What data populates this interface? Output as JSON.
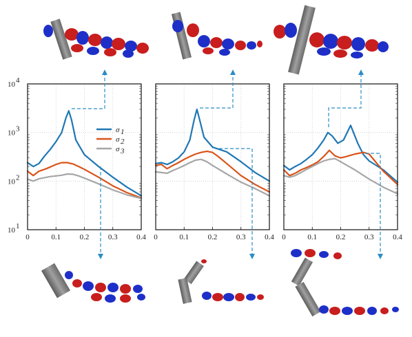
{
  "chart_data": {
    "type": "line",
    "panels": [
      {
        "xlim": [
          0,
          0.4
        ],
        "ylim_log10": [
          1,
          4
        ],
        "log_y": true,
        "grid": true,
        "series": [
          {
            "name": "σ1",
            "color": "#1f77b4",
            "x": [
              0,
              0.02,
              0.04,
              0.06,
              0.08,
              0.1,
              0.12,
              0.135,
              0.145,
              0.155,
              0.17,
              0.2,
              0.25,
              0.3,
              0.35,
              0.4
            ],
            "y": [
              240,
              200,
              230,
              330,
              450,
              650,
              1000,
              2000,
              2800,
              1800,
              700,
              350,
              200,
              120,
              75,
              50
            ]
          },
          {
            "name": "σ2",
            "color": "#d95319",
            "x": [
              0,
              0.02,
              0.04,
              0.06,
              0.08,
              0.1,
              0.12,
              0.14,
              0.16,
              0.18,
              0.2,
              0.25,
              0.3,
              0.35,
              0.4
            ],
            "y": [
              160,
              130,
              160,
              175,
              195,
              220,
              240,
              240,
              225,
              200,
              175,
              120,
              80,
              58,
              45
            ]
          },
          {
            "name": "σ3",
            "color": "#a6a6a6",
            "x": [
              0,
              0.02,
              0.04,
              0.06,
              0.08,
              0.1,
              0.12,
              0.14,
              0.16,
              0.18,
              0.2,
              0.25,
              0.3,
              0.35,
              0.4
            ],
            "y": [
              110,
              100,
              112,
              118,
              124,
              128,
              132,
              140,
              138,
              128,
              115,
              88,
              66,
              52,
              44
            ]
          }
        ],
        "legend": "top-right"
      },
      {
        "xlim": [
          0,
          0.4
        ],
        "ylim_log10": [
          1,
          4
        ],
        "log_y": true,
        "grid": true,
        "series": [
          {
            "name": "σ1",
            "color": "#1f77b4",
            "x": [
              0,
              0.02,
              0.04,
              0.06,
              0.08,
              0.1,
              0.12,
              0.135,
              0.145,
              0.155,
              0.17,
              0.2,
              0.25,
              0.3,
              0.35,
              0.4
            ],
            "y": [
              230,
              240,
              220,
              250,
              300,
              400,
              700,
              1800,
              3000,
              1800,
              800,
              500,
              400,
              250,
              150,
              100
            ]
          },
          {
            "name": "σ2",
            "color": "#d95319",
            "x": [
              0,
              0.02,
              0.04,
              0.06,
              0.08,
              0.1,
              0.12,
              0.14,
              0.16,
              0.18,
              0.2,
              0.22,
              0.25,
              0.3,
              0.35,
              0.4
            ],
            "y": [
              210,
              220,
              180,
              210,
              240,
              280,
              320,
              360,
              390,
              410,
              390,
              320,
              230,
              130,
              85,
              60
            ]
          },
          {
            "name": "σ3",
            "color": "#a6a6a6",
            "x": [
              0,
              0.02,
              0.04,
              0.06,
              0.08,
              0.1,
              0.12,
              0.14,
              0.16,
              0.18,
              0.2,
              0.25,
              0.3,
              0.35,
              0.4
            ],
            "y": [
              155,
              150,
              145,
              165,
              185,
              210,
              240,
              270,
              280,
              250,
              210,
              140,
              95,
              70,
              50
            ]
          }
        ]
      },
      {
        "xlim": [
          0,
          0.4
        ],
        "ylim_log10": [
          1,
          4
        ],
        "log_y": true,
        "grid": true,
        "series": [
          {
            "name": "σ1",
            "color": "#1f77b4",
            "x": [
              0,
              0.02,
              0.04,
              0.06,
              0.08,
              0.1,
              0.12,
              0.14,
              0.155,
              0.17,
              0.19,
              0.21,
              0.235,
              0.26,
              0.28,
              0.3,
              0.35,
              0.4
            ],
            "y": [
              210,
              170,
              200,
              230,
              280,
              350,
              480,
              700,
              1000,
              850,
              600,
              700,
              1400,
              600,
              350,
              260,
              170,
              95
            ]
          },
          {
            "name": "σ2",
            "color": "#d95319",
            "x": [
              0,
              0.02,
              0.04,
              0.06,
              0.08,
              0.1,
              0.12,
              0.14,
              0.16,
              0.18,
              0.2,
              0.22,
              0.25,
              0.28,
              0.3,
              0.32,
              0.35,
              0.4
            ],
            "y": [
              170,
              130,
              145,
              170,
              190,
              215,
              250,
              320,
              430,
              330,
              300,
              320,
              360,
              390,
              360,
              260,
              160,
              85
            ]
          },
          {
            "name": "σ3",
            "color": "#a6a6a6",
            "x": [
              0,
              0.02,
              0.04,
              0.06,
              0.08,
              0.1,
              0.12,
              0.14,
              0.16,
              0.18,
              0.2,
              0.25,
              0.3,
              0.35,
              0.4
            ],
            "y": [
              130,
              120,
              130,
              150,
              175,
              200,
              230,
              260,
              280,
              290,
              250,
              170,
              110,
              75,
              55
            ]
          }
        ]
      }
    ],
    "x_ticks": [
      "0",
      "0.1",
      "0.2",
      "0.3",
      "0.4"
    ],
    "y_ticks": [
      "10",
      "10",
      "10",
      "10"
    ],
    "y_tick_exponents": [
      "1",
      "2",
      "3",
      "4"
    ],
    "legend_labels": [
      "σ",
      "σ",
      "σ"
    ],
    "legend_subscripts": [
      "1",
      "2",
      "3"
    ]
  },
  "colors": {
    "blue": "#1f77b4",
    "orange": "#d95319",
    "gray": "#a6a6a6",
    "dash": "#2a8dc4",
    "vortex_red": "#c81e1e",
    "vortex_blue": "#1e2fc8",
    "plate": "#7d7d7d"
  }
}
